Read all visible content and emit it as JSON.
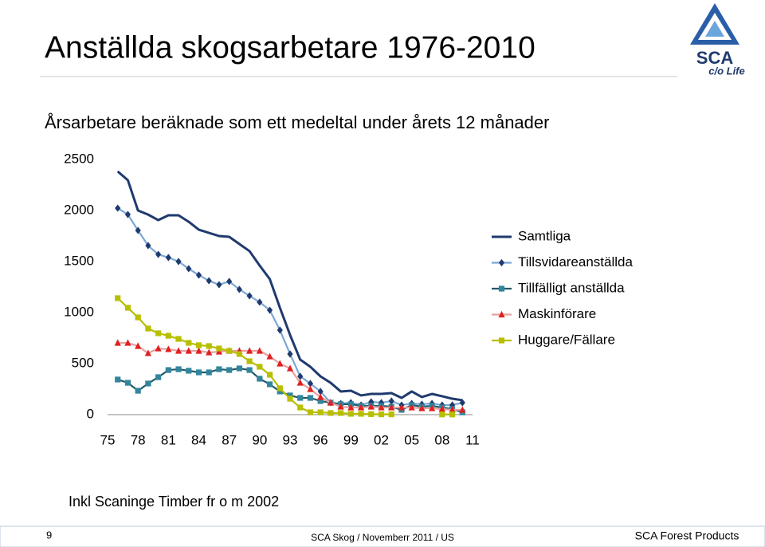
{
  "chart_data": {
    "type": "line",
    "title": "Anställda skogsarbetare 1976-2010",
    "subtitle": "Årsarbetare beräknade som ett medeltal under årets 12 månader",
    "annotation": "Inkl Scaninge Timber fr o m 2002",
    "x": [
      1976,
      1977,
      1978,
      1979,
      1980,
      1981,
      1982,
      1983,
      1984,
      1985,
      1986,
      1987,
      1988,
      1989,
      1990,
      1991,
      1992,
      1993,
      1994,
      1995,
      1996,
      1997,
      1998,
      1999,
      2000,
      2001,
      2002,
      2003,
      2004,
      2005,
      2006,
      2007,
      2008,
      2009,
      2010
    ],
    "xlim": [
      1975,
      2011
    ],
    "xticks": [
      {
        "value": 1975,
        "label": "75"
      },
      {
        "value": 1978,
        "label": "78"
      },
      {
        "value": 1981,
        "label": "81"
      },
      {
        "value": 1984,
        "label": "84"
      },
      {
        "value": 1987,
        "label": "87"
      },
      {
        "value": 1990,
        "label": "90"
      },
      {
        "value": 1993,
        "label": "93"
      },
      {
        "value": 1996,
        "label": "96"
      },
      {
        "value": 1999,
        "label": "99"
      },
      {
        "value": 2002,
        "label": "02"
      },
      {
        "value": 2005,
        "label": "05"
      },
      {
        "value": 2008,
        "label": "08"
      },
      {
        "value": 2011,
        "label": "11"
      }
    ],
    "ylim": [
      0,
      2500
    ],
    "yticks": [
      0,
      500,
      1000,
      1500,
      2000,
      2500
    ],
    "grid": false,
    "legend": "right",
    "series": [
      {
        "name": "Samtliga",
        "color": "#1f3a6e",
        "marker": "none",
        "values": [
          2383,
          2297,
          2000,
          1960,
          1906,
          1953,
          1953,
          1890,
          1812,
          1781,
          1750,
          1742,
          1672,
          1602,
          1461,
          1328,
          1047,
          781,
          539,
          469,
          375,
          312,
          227,
          234,
          188,
          203,
          203,
          211,
          164,
          227,
          172,
          203,
          180,
          156,
          141
        ]
      },
      {
        "name": "Tillsvidareanställda",
        "color": "#7ba7d4",
        "marker_color": "#1f3a6e",
        "marker": "diamond",
        "values": [
          2023,
          1961,
          1805,
          1656,
          1570,
          1539,
          1500,
          1430,
          1367,
          1312,
          1273,
          1305,
          1227,
          1164,
          1102,
          1023,
          828,
          594,
          375,
          305,
          227,
          117,
          109,
          117,
          94,
          125,
          117,
          133,
          94,
          109,
          102,
          109,
          94,
          94,
          117
        ]
      },
      {
        "name": "Tillfälligt anställda",
        "color": "#215968",
        "marker_color": "#31859c",
        "marker": "square",
        "values": [
          344,
          312,
          234,
          305,
          367,
          437,
          445,
          430,
          414,
          414,
          445,
          437,
          453,
          437,
          352,
          297,
          227,
          188,
          164,
          164,
          133,
          117,
          102,
          102,
          86,
          86,
          86,
          78,
          47,
          94,
          78,
          86,
          70,
          55,
          23
        ]
      },
      {
        "name": "Maskinförare",
        "color": "#e8a0a0",
        "marker_color": "#e02020",
        "marker": "triangle",
        "values": [
          703,
          703,
          672,
          602,
          648,
          641,
          625,
          625,
          625,
          609,
          617,
          625,
          625,
          625,
          625,
          570,
          500,
          453,
          312,
          250,
          172,
          117,
          78,
          70,
          70,
          78,
          70,
          70,
          70,
          70,
          62,
          62,
          55,
          47,
          47
        ]
      },
      {
        "name": "Huggare/Fällare",
        "color": "#b8bf00",
        "marker_color": "#b8bf00",
        "marker": "square",
        "values": [
          1141,
          1047,
          953,
          844,
          797,
          773,
          742,
          703,
          680,
          672,
          648,
          625,
          594,
          523,
          469,
          391,
          258,
          156,
          70,
          23,
          23,
          16,
          16,
          8,
          8,
          5,
          3,
          3,
          null,
          null,
          null,
          null,
          2,
          2,
          null
        ]
      }
    ]
  },
  "logo": {
    "name": "SCA",
    "tagline": "c/o Life"
  },
  "footer": {
    "page": "9",
    "center": "SCA Skog / Novemberr 2011 / US",
    "right": "SCA Forest Products"
  }
}
